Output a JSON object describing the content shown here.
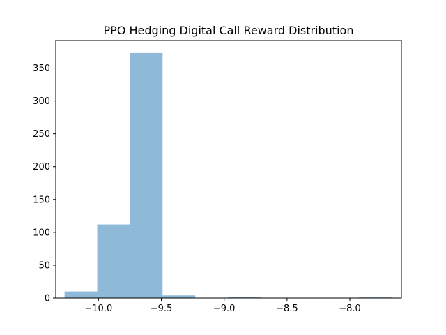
{
  "chart_data": {
    "type": "histogram",
    "title": "PPO Hedging Digital Call Reward Distribution",
    "xlabel": "",
    "ylabel": "",
    "xlim": [
      -10.34,
      -7.59
    ],
    "ylim": [
      0,
      392
    ],
    "x_ticks": [
      {
        "value": -10.0,
        "label": "−10.0"
      },
      {
        "value": -9.5,
        "label": "−9.5"
      },
      {
        "value": -9.0,
        "label": "−9.0"
      },
      {
        "value": -8.5,
        "label": "−8.5"
      },
      {
        "value": -8.0,
        "label": "−8.0"
      }
    ],
    "y_ticks": [
      {
        "value": 0,
        "label": "0"
      },
      {
        "value": 50,
        "label": "50"
      },
      {
        "value": 100,
        "label": "100"
      },
      {
        "value": 150,
        "label": "150"
      },
      {
        "value": 200,
        "label": "200"
      },
      {
        "value": 250,
        "label": "250"
      },
      {
        "value": 300,
        "label": "300"
      },
      {
        "value": 350,
        "label": "350"
      }
    ],
    "bins": [
      -10.27,
      -10.01,
      -9.75,
      -9.49,
      -9.23,
      -8.97,
      -8.71,
      -8.45,
      -8.19,
      -7.93,
      -7.67
    ],
    "counts": [
      10,
      112,
      373,
      4,
      0,
      2,
      0,
      0,
      0,
      1
    ],
    "bar_color": "#8fb9d8",
    "grid": false,
    "legend": "none"
  }
}
